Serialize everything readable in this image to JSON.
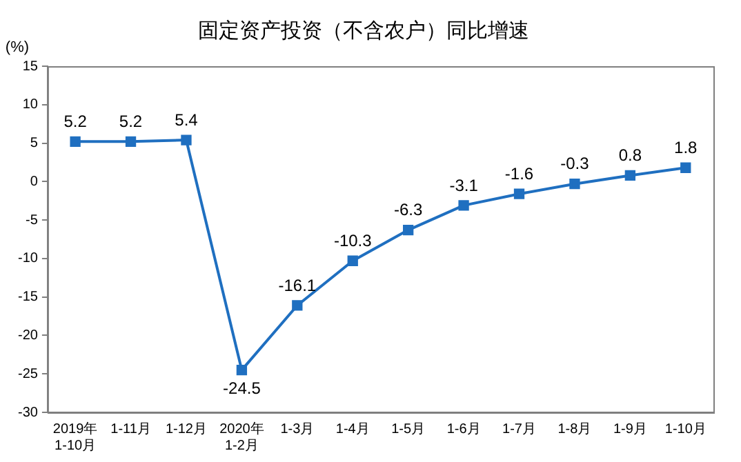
{
  "chart_data": {
    "type": "line",
    "title": "固定资产投资（不含农户）同比增速",
    "ylabel": "(%)",
    "categories": [
      "2019年\n1-10月",
      "1-11月",
      "1-12月",
      "2020年\n1-2月",
      "1-3月",
      "1-4月",
      "1-5月",
      "1-6月",
      "1-7月",
      "1-8月",
      "1-9月",
      "1-10月"
    ],
    "series": [
      {
        "color": "#1f6fc0",
        "values": [
          5.2,
          5.2,
          5.4,
          -24.5,
          -16.1,
          -10.3,
          -6.3,
          -3.1,
          -1.6,
          -0.3,
          0.8,
          1.8
        ]
      }
    ],
    "ylim": [
      -30,
      15
    ],
    "yticks": [
      -30,
      -25,
      -20,
      -15,
      -10,
      -5,
      0,
      5,
      10,
      15
    ],
    "grid": false,
    "legend": false,
    "marker": "square",
    "line_style": "solid",
    "data_labels": true
  }
}
